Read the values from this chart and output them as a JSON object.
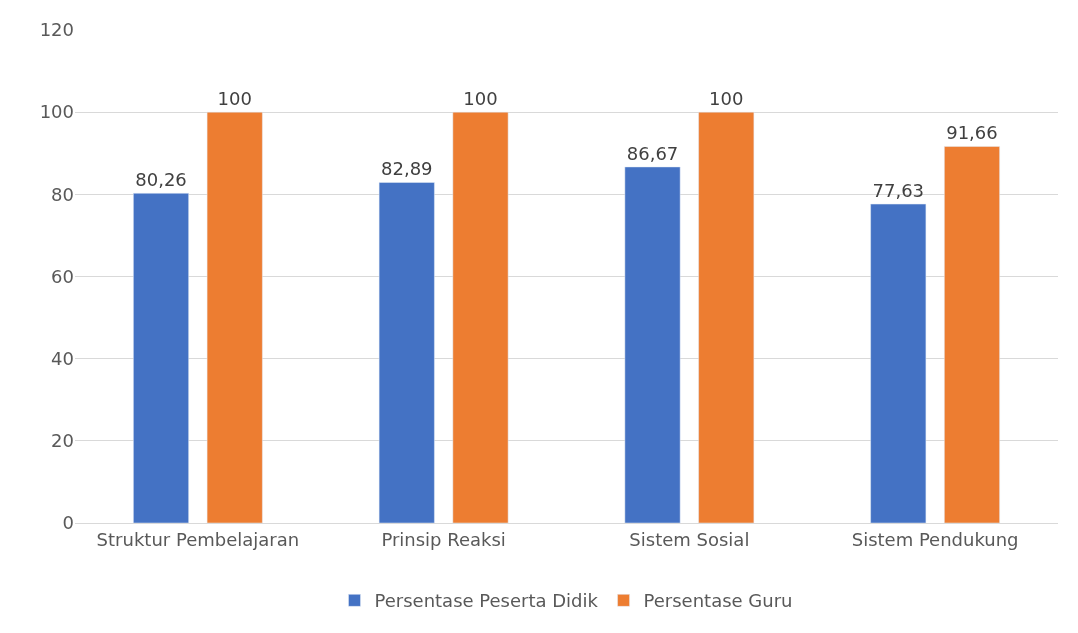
{
  "chart_data": {
    "type": "bar",
    "categories": [
      "Struktur Pembelajaran",
      "Prinsip Reaksi",
      "Sistem Sosial",
      "Sistem Pendukung"
    ],
    "series": [
      {
        "name": "Persentase Peserta Didik",
        "color": "#4472c4",
        "values": [
          80.26,
          82.89,
          86.67,
          77.63
        ],
        "value_labels": [
          "80,26",
          "82,89",
          "86,67",
          "77,63"
        ]
      },
      {
        "name": "Persentase Guru",
        "color": "#ed7d31",
        "values": [
          100,
          100,
          100,
          91.66
        ],
        "value_labels": [
          "100",
          "100",
          "100",
          "91,66"
        ]
      }
    ],
    "ylim": [
      0,
      120
    ],
    "yticks": [
      0,
      20,
      40,
      60,
      80,
      100,
      120
    ],
    "grid": "y",
    "legend": "bottom"
  }
}
